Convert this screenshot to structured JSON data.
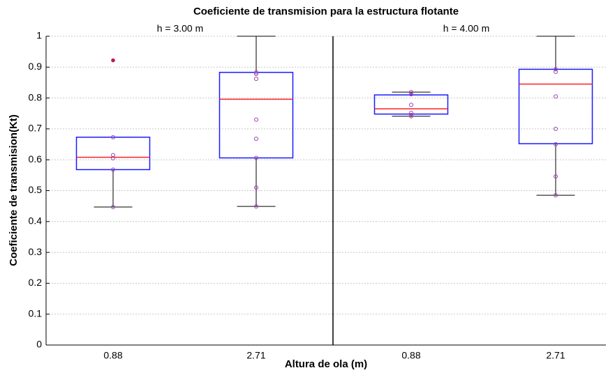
{
  "chart_data": {
    "type": "box",
    "title": "Coeficiente de transmision para la estructura flotante",
    "xlabel": "Altura de ola (m)",
    "ylabel": "Coeficiente de transmision(Kt)",
    "groups": [
      "h = 3.00 m",
      "h = 4.00 m"
    ],
    "categories": [
      "0.88",
      "2.71",
      "0.88",
      "2.71"
    ],
    "ylim": [
      0,
      1
    ],
    "yticks": [
      0,
      0.1,
      0.2,
      0.3,
      0.4,
      0.5,
      0.6,
      0.7,
      0.8,
      0.9,
      1
    ],
    "grid": true,
    "box_color": "#1a1aff",
    "median_color": "#ff2020",
    "point_color": "#9a3fb0",
    "outlier_color": "#b0204a",
    "boxes": [
      {
        "whisker_low": 0.447,
        "q1": 0.568,
        "median": 0.608,
        "q3": 0.673,
        "whisker_high": 0.673,
        "points": [
          0.673,
          0.615,
          0.605,
          0.568,
          0.447
        ],
        "outliers": [
          0.922
        ]
      },
      {
        "whisker_low": 0.449,
        "q1": 0.606,
        "median": 0.796,
        "q3": 0.883,
        "whisker_high": 1,
        "points": [
          0.449,
          0.51,
          0.606,
          0.668,
          0.73,
          0.862,
          0.878,
          0.883
        ],
        "outliers": []
      },
      {
        "whisker_low": 0.741,
        "q1": 0.748,
        "median": 0.765,
        "q3": 0.81,
        "whisker_high": 0.819,
        "points": [
          0.819,
          0.812,
          0.778,
          0.752,
          0.745,
          0.741
        ],
        "outliers": []
      },
      {
        "whisker_low": 0.485,
        "q1": 0.652,
        "median": 0.845,
        "q3": 0.893,
        "whisker_high": 1,
        "points": [
          0.485,
          0.546,
          0.65,
          0.7,
          0.805,
          0.885,
          0.893
        ],
        "outliers": []
      }
    ]
  }
}
